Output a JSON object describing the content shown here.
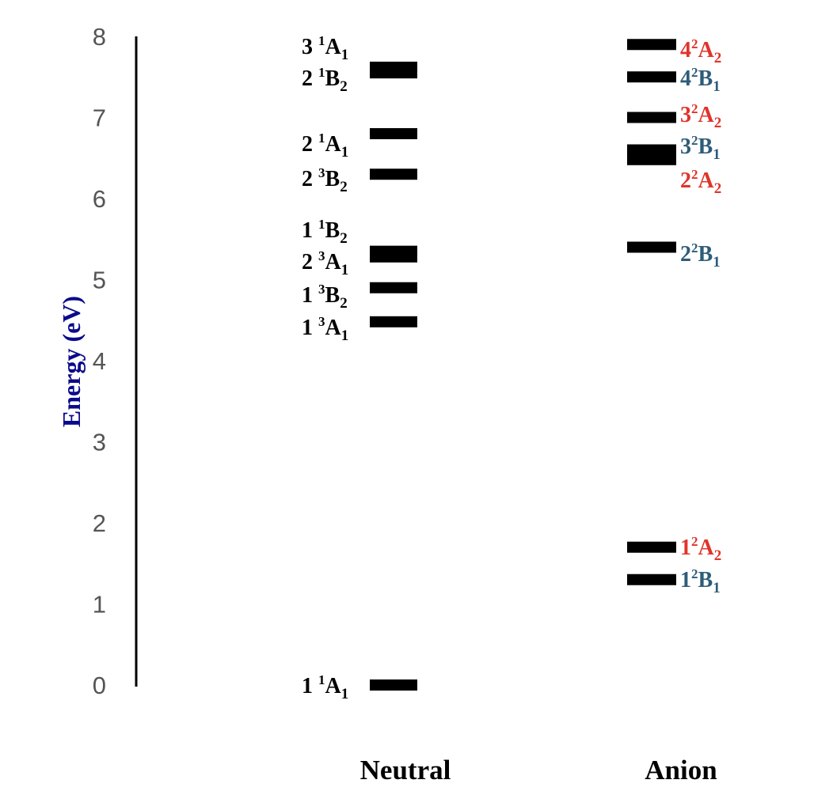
{
  "chart_data": {
    "type": "energy-level",
    "ylabel": "Energy (eV)",
    "ylim": [
      0,
      8
    ],
    "yticks": [
      "0",
      "1",
      "2",
      "3",
      "4",
      "5",
      "6",
      "7",
      "8"
    ],
    "categories": [
      "Neutral",
      "Anion"
    ],
    "series": [
      {
        "name": "Neutral",
        "levels": [
          {
            "state": "1 1A1",
            "num": "1",
            "spin": "1",
            "sym": "A",
            "sub": "1",
            "energy": 0.0
          },
          {
            "state": "1 3A1",
            "num": "1",
            "spin": "3",
            "sym": "A",
            "sub": "1",
            "energy": 4.48
          },
          {
            "state": "1 3B2",
            "num": "1",
            "spin": "3",
            "sym": "B",
            "sub": "2",
            "energy": 4.9
          },
          {
            "state": "2 3A1",
            "num": "2",
            "spin": "3",
            "sym": "A",
            "sub": "1",
            "energy": 5.28
          },
          {
            "state": "1 1B2",
            "num": "1",
            "spin": "1",
            "sym": "B",
            "sub": "2",
            "energy": 5.35
          },
          {
            "state": "2 3B2",
            "num": "2",
            "spin": "3",
            "sym": "B",
            "sub": "2",
            "energy": 6.3
          },
          {
            "state": "2 1A1",
            "num": "2",
            "spin": "1",
            "sym": "A",
            "sub": "1",
            "energy": 6.8
          },
          {
            "state": "2 1B2",
            "num": "2",
            "spin": "1",
            "sym": "B",
            "sub": "2",
            "energy": 7.55
          },
          {
            "state": "3 1A1",
            "num": "3",
            "spin": "1",
            "sym": "A",
            "sub": "1",
            "energy": 7.62
          }
        ]
      },
      {
        "name": "Anion",
        "levels": [
          {
            "state": "12B1",
            "num": "1",
            "spin": "2",
            "sym": "B",
            "sub": "1",
            "energy": 1.3,
            "color": "#2e5c7a"
          },
          {
            "state": "12A2",
            "num": "1",
            "spin": "2",
            "sym": "A",
            "sub": "2",
            "energy": 1.7,
            "color": "#e0342b"
          },
          {
            "state": "22B1",
            "num": "2",
            "spin": "2",
            "sym": "B",
            "sub": "1",
            "energy": 5.4,
            "color": "#2e5c7a"
          },
          {
            "state": "22A2",
            "num": "2",
            "spin": "2",
            "sym": "A",
            "sub": "2",
            "energy": 6.48,
            "color": "#e0342b"
          },
          {
            "state": "32B1",
            "num": "3",
            "spin": "2",
            "sym": "B",
            "sub": "1",
            "energy": 6.6,
            "color": "#2e5c7a"
          },
          {
            "state": "32A2",
            "num": "3",
            "spin": "2",
            "sym": "A",
            "sub": "2",
            "energy": 7.0,
            "color": "#e0342b"
          },
          {
            "state": "42B1",
            "num": "4",
            "spin": "2",
            "sym": "B",
            "sub": "1",
            "energy": 7.5,
            "color": "#2e5c7a"
          },
          {
            "state": "42A2",
            "num": "4",
            "spin": "2",
            "sym": "A",
            "sub": "2",
            "energy": 7.9,
            "color": "#e0342b"
          }
        ]
      }
    ],
    "colors": {
      "axis": "#000000",
      "tick": "#555555",
      "ylabel": "#0a0a8c",
      "neutral_label": "#000000",
      "a2": "#e0342b",
      "b1": "#2e5c7a"
    }
  }
}
